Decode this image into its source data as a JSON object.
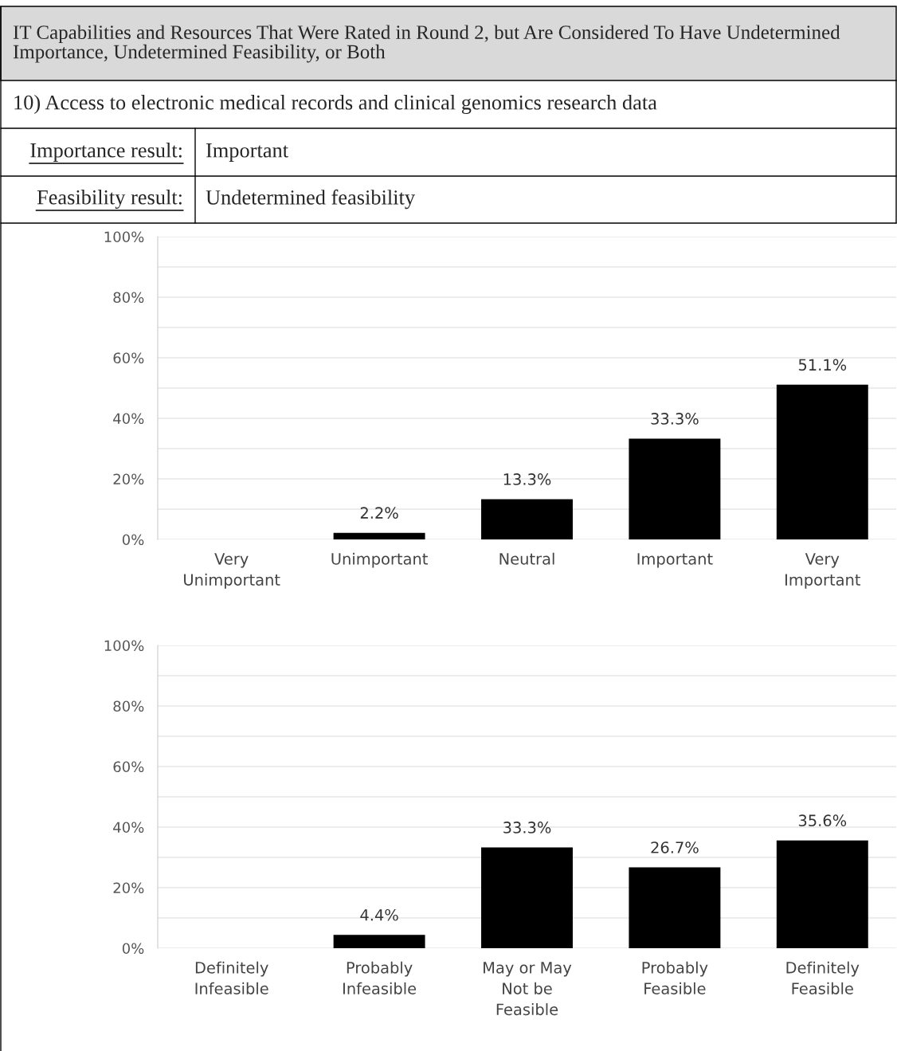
{
  "chart_data": [
    {
      "type": "bar",
      "title": "IT Capabilities and Resources That Were Rated in Round 2, but Are Considered To Have Undetermined Importance, Undetermined Feasibility, or Both",
      "subtitle": "10) Access to electronic medical records and clinical genomics research data",
      "annotations": [
        "Importance result:",
        "Important",
        "Feasibility result:",
        "Undetermined feasibility"
      ],
      "categories": [
        "Very\nUnimportant",
        "Unimportant",
        "Neutral",
        "Important",
        "Very\nImportant"
      ],
      "values": [
        0,
        2.2,
        13.3,
        33.3,
        51.1
      ],
      "color": "#000000",
      "value_labels": [
        null,
        "2.2%",
        "13.3%",
        "33.3%",
        "51.1%"
      ],
      "ylim": [
        0,
        100
      ],
      "yticks": [
        {
          "value": 0,
          "label": "0%"
        },
        {
          "value": 10,
          "label": null
        },
        {
          "value": 20,
          "label": "20%"
        },
        {
          "value": 30,
          "label": null
        },
        {
          "value": 40,
          "label": "40%"
        },
        {
          "value": 50,
          "label": null
        },
        {
          "value": 60,
          "label": "60%"
        },
        {
          "value": 70,
          "label": null
        },
        {
          "value": 80,
          "label": "80%"
        },
        {
          "value": 90,
          "label": null
        },
        {
          "value": 100,
          "label": "100%"
        }
      ],
      "grid": "y"
    },
    {
      "type": "bar",
      "categories": [
        "Definitely\nInfeasible",
        "Probably\nInfeasible",
        "May or May\nNot be\nFeasible",
        "Probably\nFeasible",
        "Definitely\nFeasible"
      ],
      "values": [
        0,
        4.4,
        33.3,
        26.7,
        35.6
      ],
      "color": "#000000",
      "value_labels": [
        null,
        "4.4%",
        "33.3%",
        "26.7%",
        "35.6%"
      ],
      "ylim": [
        0,
        100
      ],
      "yticks": [
        {
          "value": 0,
          "label": "0%"
        },
        {
          "value": 10,
          "label": null
        },
        {
          "value": 20,
          "label": "20%"
        },
        {
          "value": 30,
          "label": null
        },
        {
          "value": 40,
          "label": "40%"
        },
        {
          "value": 50,
          "label": null
        },
        {
          "value": 60,
          "label": "60%"
        },
        {
          "value": 70,
          "label": null
        },
        {
          "value": 80,
          "label": "80%"
        },
        {
          "value": 90,
          "label": null
        },
        {
          "value": 100,
          "label": "100%"
        }
      ],
      "grid": "y"
    }
  ]
}
